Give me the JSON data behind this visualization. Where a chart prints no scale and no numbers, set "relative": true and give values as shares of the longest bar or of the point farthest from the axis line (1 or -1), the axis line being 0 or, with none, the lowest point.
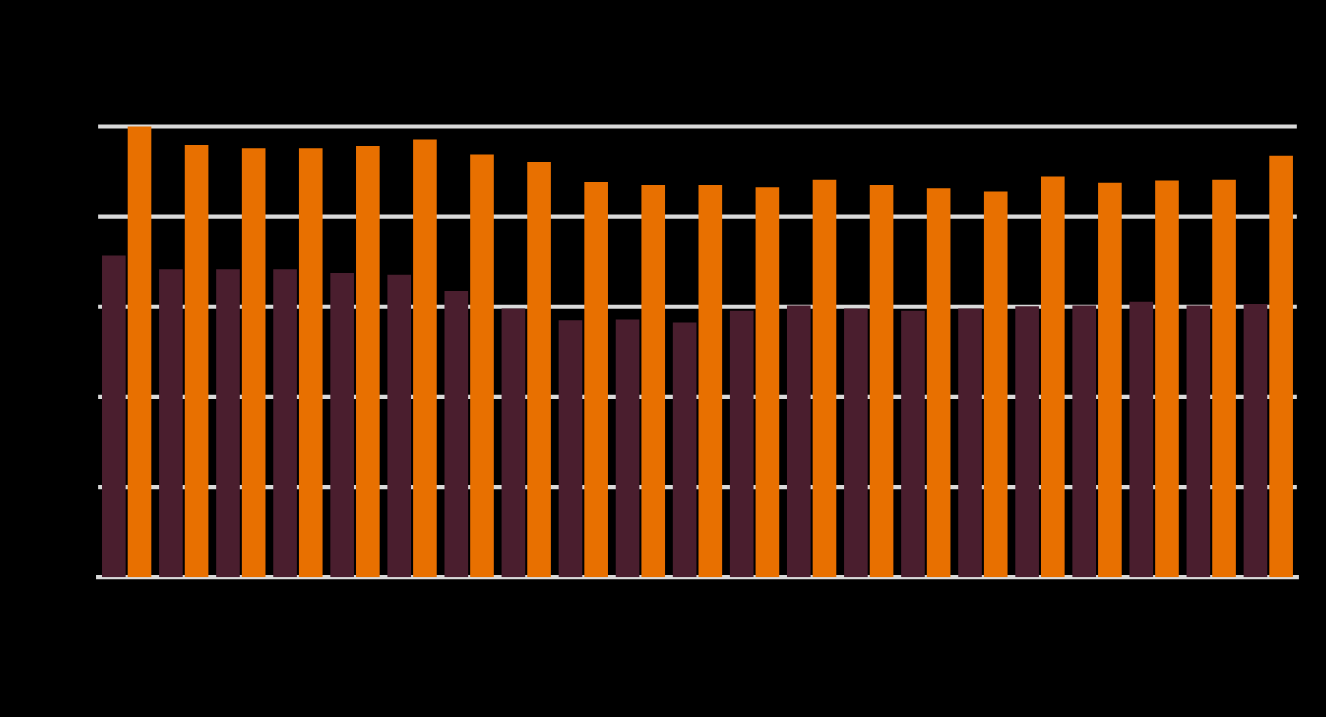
{
  "chart_data": {
    "type": "bar",
    "relative": true,
    "grid": "y",
    "categories": [
      null,
      null,
      null,
      null,
      null,
      null,
      null,
      null,
      null,
      null,
      null,
      null,
      null,
      null,
      null,
      null,
      null,
      null,
      null,
      null,
      null
    ],
    "series": [
      {
        "color": "#4a1e2e",
        "values": [
          0.714,
          0.683,
          0.683,
          0.683,
          0.675,
          0.671,
          0.635,
          0.596,
          0.57,
          0.572,
          0.565,
          0.591,
          0.603,
          0.596,
          0.591,
          0.596,
          0.601,
          0.603,
          0.611,
          0.603,
          0.606
        ]
      },
      {
        "color": "#e87000",
        "values": [
          1,
          0.959,
          0.952,
          0.952,
          0.957,
          0.971,
          0.938,
          0.921,
          0.877,
          0.87,
          0.87,
          0.865,
          0.882,
          0.87,
          0.863,
          0.856,
          0.889,
          0.875,
          0.88,
          0.882,
          0.935
        ]
      }
    ]
  }
}
